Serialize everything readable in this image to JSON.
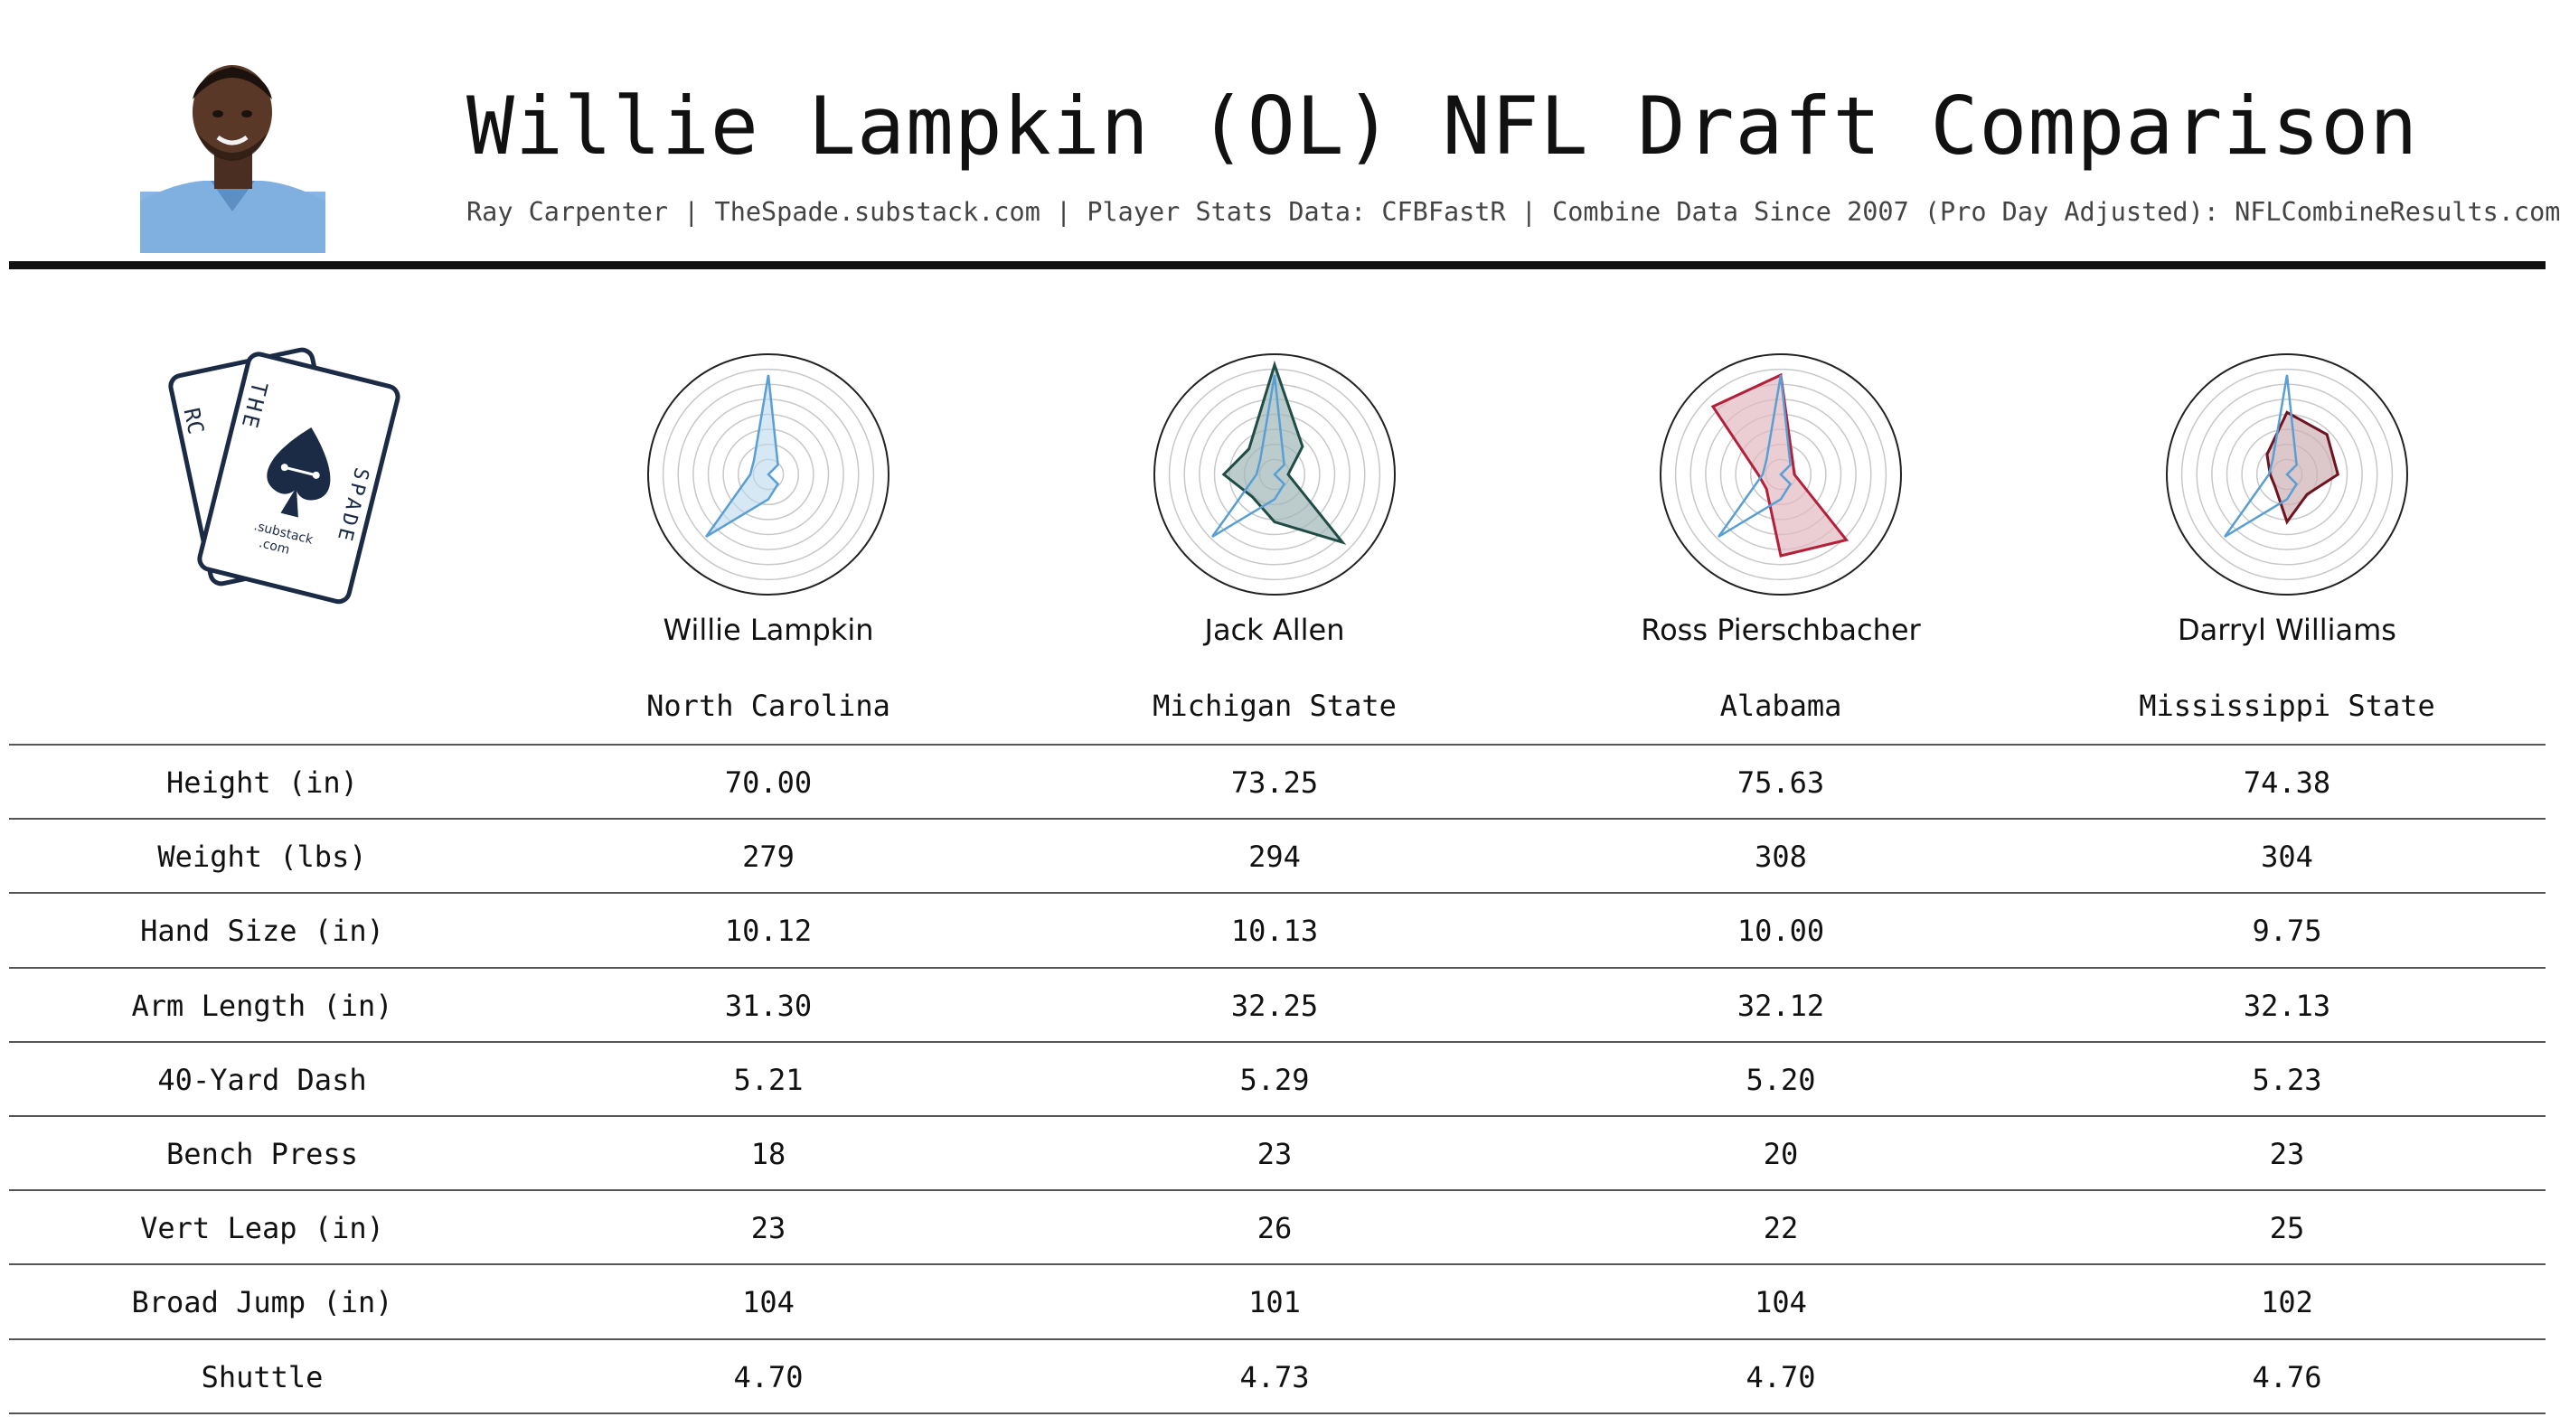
{
  "header": {
    "title": "Willie Lampkin (OL) NFL Draft Comparison",
    "subtitle": "Ray Carpenter | TheSpade.substack.com | Player Stats Data: CFBFastR | Combine Data Since 2007 (Pro Day Adjusted): NFLCombineResults.com"
  },
  "logo": {
    "back_card_letters": "RC",
    "word_the": "THE",
    "word_spade": "SPADE",
    "substack": ".substack",
    "com": ".com"
  },
  "chart_data": {
    "type": "table",
    "title": "Willie Lampkin (OL) NFL Draft Comparison",
    "columns": [
      "Willie Lampkin",
      "Jack Allen",
      "Ross Pierschbacher",
      "Darryl Williams"
    ],
    "schools": [
      "North Carolina",
      "Michigan State",
      "Alabama",
      "Mississippi State"
    ],
    "row_labels": [
      "Height (in)",
      "Weight (lbs)",
      "Hand Size (in)",
      "Arm Length (in)",
      "40-Yard Dash",
      "Bench Press",
      "Vert Leap (in)",
      "Broad Jump (in)",
      "Shuttle"
    ],
    "rows": [
      [
        "70.00",
        "73.25",
        "75.63",
        "74.38"
      ],
      [
        "279",
        "294",
        "308",
        "304"
      ],
      [
        "10.12",
        "10.13",
        "10.00",
        "9.75"
      ],
      [
        "31.30",
        "32.25",
        "32.12",
        "32.13"
      ],
      [
        "5.21",
        "5.29",
        "5.20",
        "5.23"
      ],
      [
        "18",
        "23",
        "20",
        "23"
      ],
      [
        "23",
        "26",
        "22",
        "25"
      ],
      [
        "104",
        "101",
        "104",
        "102"
      ],
      [
        "4.70",
        "4.73",
        "4.70",
        "4.76"
      ]
    ],
    "radar": {
      "type": "radar",
      "reference_series": [
        0.88,
        0.12,
        0.0,
        0.12,
        0.22,
        0.78,
        0.16,
        0.18
      ],
      "players": [
        {
          "name": "Willie Lampkin",
          "color": "#5a9fd4",
          "fill": "#bcd8ee",
          "values": [
            0.88,
            0.12,
            0.0,
            0.12,
            0.22,
            0.78,
            0.16,
            0.18
          ]
        },
        {
          "name": "Jack Allen",
          "color": "#1f4d45",
          "fill": "#9fb6b6",
          "values": [
            0.97,
            0.35,
            0.12,
            0.85,
            0.42,
            0.28,
            0.45,
            0.32
          ]
        },
        {
          "name": "Ross Pierschbacher",
          "color": "#b3203a",
          "fill": "#e3b9c2",
          "values": [
            0.88,
            0.15,
            0.12,
            0.82,
            0.72,
            0.18,
            0.2,
            0.85
          ]
        },
        {
          "name": "Darryl Williams",
          "color": "#6e1420",
          "fill": "#cdb1b5",
          "values": [
            0.55,
            0.5,
            0.45,
            0.25,
            0.42,
            0.15,
            0.15,
            0.25
          ]
        }
      ],
      "rings": 8
    }
  }
}
